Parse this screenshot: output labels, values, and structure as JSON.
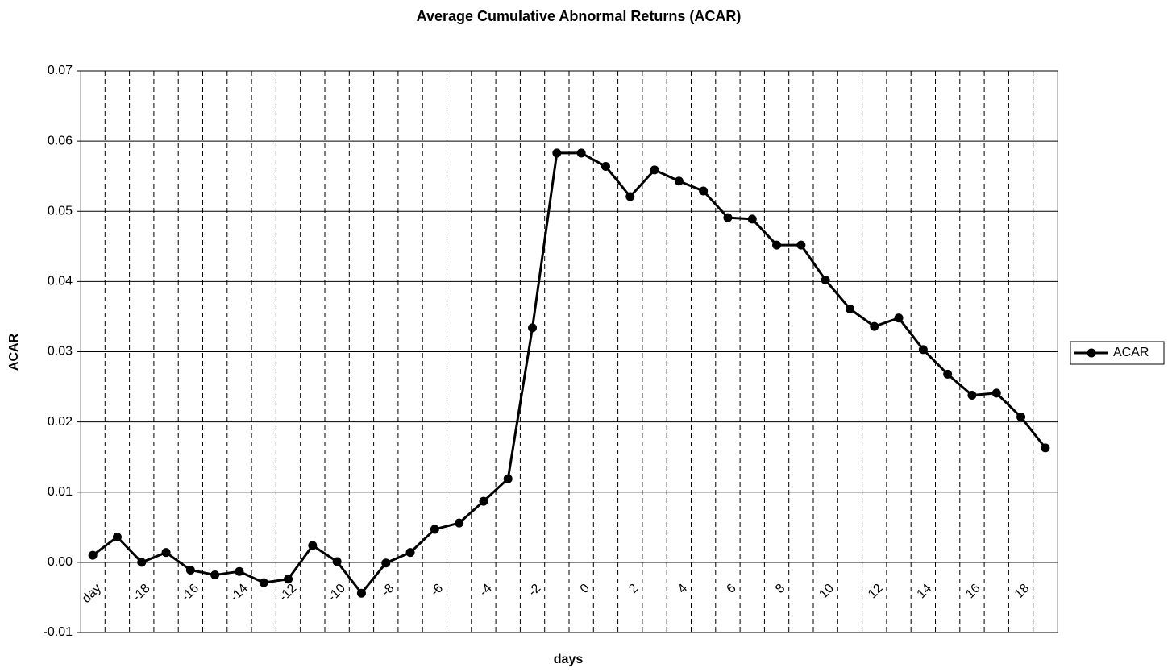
{
  "chart_data": {
    "type": "line",
    "title": "Average Cumulative Abnormal Returns (ACAR)",
    "x_label": "days",
    "y_label": "ACAR",
    "categories": [
      "day",
      null,
      "-18",
      null,
      "-16",
      null,
      "-14",
      null,
      "-12",
      null,
      "-10",
      null,
      "-8",
      null,
      "-6",
      null,
      "-4",
      null,
      "-2",
      null,
      "0",
      null,
      "2",
      null,
      "4",
      null,
      "6",
      null,
      "8",
      null,
      "10",
      null,
      "12",
      null,
      "14",
      null,
      "16",
      null,
      "18",
      null
    ],
    "series": [
      {
        "name": "ACAR",
        "color": "#000000",
        "values": [
          0.001,
          0.0036,
          0.0,
          0.0014,
          -0.0011,
          -0.0018,
          -0.0013,
          -0.0029,
          -0.0024,
          0.0024,
          0.0001,
          -0.0044,
          -0.0001,
          0.0014,
          0.0047,
          0.0056,
          0.0087,
          0.0119,
          0.0334,
          0.0583,
          0.0583,
          0.0564,
          0.0521,
          0.0559,
          0.0543,
          0.0529,
          0.0491,
          0.0489,
          0.0452,
          0.0452,
          0.0402,
          0.0361,
          0.0336,
          0.0348,
          0.0303,
          0.0268,
          0.0238,
          0.0241,
          0.0207,
          0.0163
        ]
      }
    ],
    "ylim": [
      -0.01,
      0.07
    ],
    "yticks": [
      -0.01,
      {
        "value": 0,
        "label": "0.00"
      },
      0.01,
      0.02,
      0.03,
      0.04,
      0.05,
      0.06,
      0.07
    ],
    "grid": true,
    "legend": "right"
  }
}
